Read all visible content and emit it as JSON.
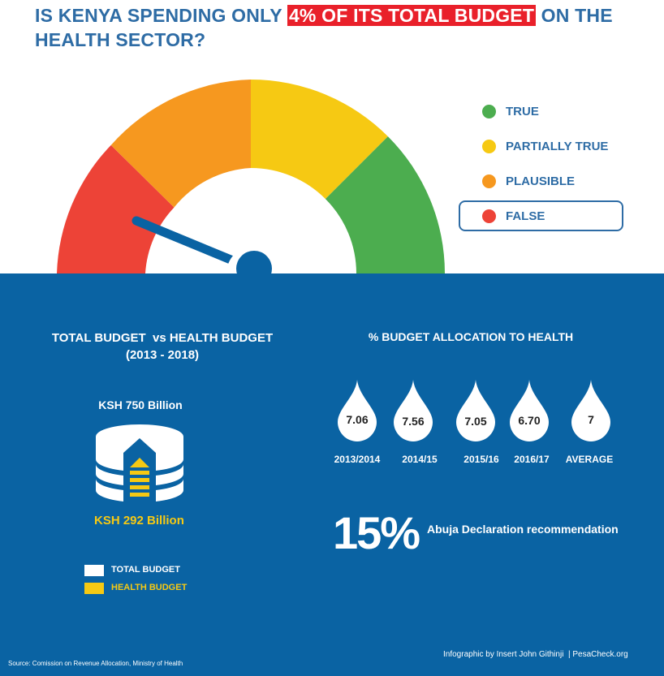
{
  "header": {
    "title_before": "IS KENYA SPENDING ONLY ",
    "title_highlight": "4% OF ITS TOTAL BUDGET",
    "title_after": " ON THE HEALTH SECTOR?",
    "highlight_color": "#e9202a",
    "text_color": "#2e6ca5"
  },
  "gauge": {
    "segment_colors": [
      "#ed4337",
      "#f6981f",
      "#f6c913",
      "#4cad4f"
    ],
    "needle_color": "#0a63a3",
    "selected": "FALSE"
  },
  "legend": [
    {
      "label": "TRUE",
      "color": "#4cad4f"
    },
    {
      "label": "PARTIALLY TRUE",
      "color": "#f6c913"
    },
    {
      "label": "PLAUSIBLE",
      "color": "#f6981f"
    },
    {
      "label": "FALSE",
      "color": "#ed4337"
    }
  ],
  "budget": {
    "heading_line1": "TOTAL BUDGET  vs HEALTH BUDGET",
    "heading_line2": "(2013 - 2018)",
    "total_label": "KSH 750 Billion",
    "health_label": "KSH 292 Billion",
    "legend_total": "TOTAL BUDGET",
    "legend_health": "HEALTH BUDGET"
  },
  "allocation": {
    "heading": "% BUDGET ALLOCATION TO HEALTH",
    "items": [
      {
        "value": "7.06",
        "year": "2013/2014"
      },
      {
        "value": "7.56",
        "year": "2014/15"
      },
      {
        "value": "7.05",
        "year": "2015/16"
      },
      {
        "value": "6.70",
        "year": "2016/17"
      },
      {
        "value": "7",
        "year": "AVERAGE"
      }
    ]
  },
  "abuja": {
    "percent": "15%",
    "text": "Abuja Declaration recommendation"
  },
  "footer": {
    "source": "Source: Comission on Revenue Allocation, Ministry of Health",
    "credit": "Infographic by Insert John Githinji  | PesaCheck.org"
  }
}
